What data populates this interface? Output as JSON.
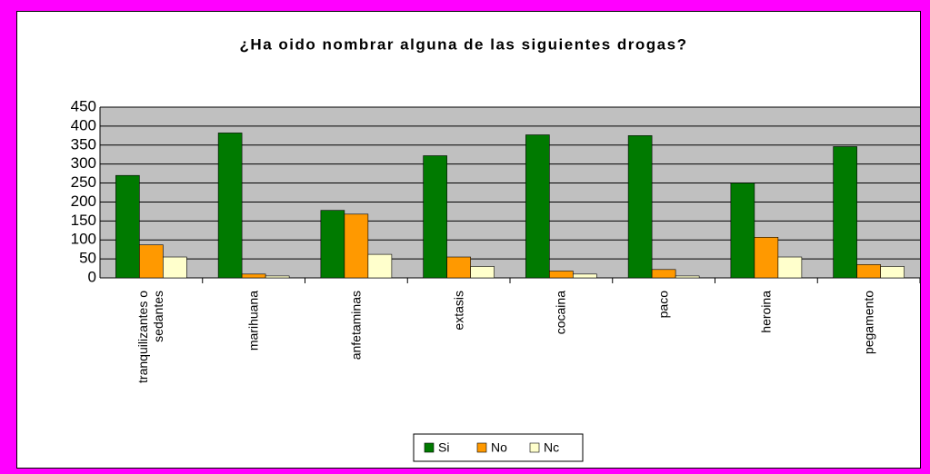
{
  "chart_data": {
    "type": "bar",
    "title": "¿Ha oido nombrar alguna de las siguientes drogas?",
    "categories": [
      "tranquilizantes o sedantes",
      "marihuana",
      "anfetaminas",
      "extasis",
      "cocaina",
      "paco",
      "heroina",
      "pegamento"
    ],
    "series": [
      {
        "name": "Si",
        "color": "#007a00",
        "values": [
          270,
          382,
          178,
          322,
          377,
          375,
          250,
          346
        ]
      },
      {
        "name": "No",
        "color": "#ff9900",
        "values": [
          87,
          10,
          168,
          55,
          18,
          22,
          107,
          35
        ]
      },
      {
        "name": "Nc",
        "color": "#ffffcc",
        "values": [
          55,
          5,
          62,
          30,
          10,
          5,
          55,
          30
        ]
      }
    ],
    "ylim": [
      0,
      450
    ],
    "yticks": [
      0,
      50,
      100,
      150,
      200,
      250,
      300,
      350,
      400,
      450
    ],
    "grid": true,
    "legend": "bottom"
  }
}
